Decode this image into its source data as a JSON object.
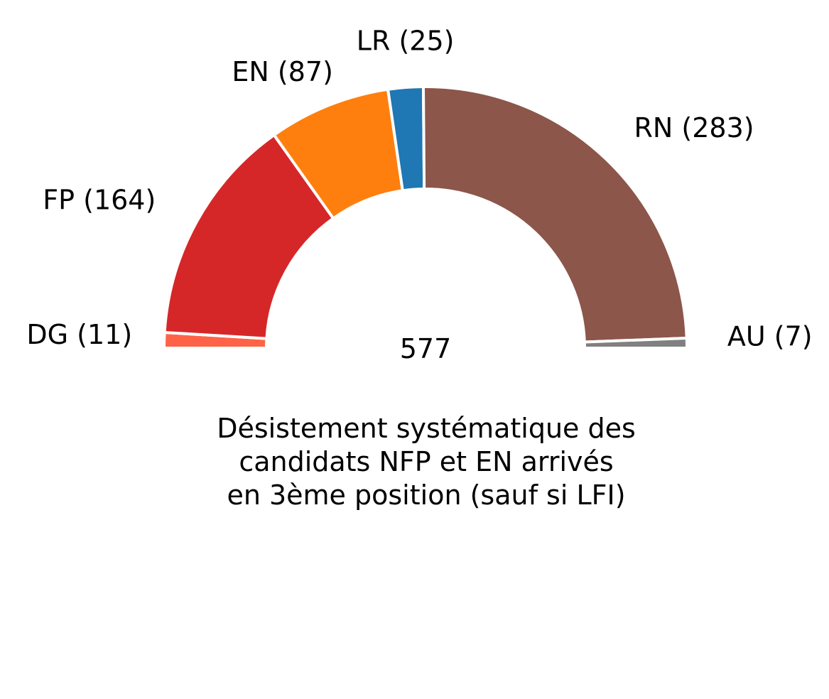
{
  "chart_data": {
    "type": "pie",
    "subtype": "half-donut",
    "total": 577,
    "total_label": "577",
    "segments": [
      {
        "name": "DG",
        "value": 11,
        "label": "DG (11)",
        "color": "#ff6347"
      },
      {
        "name": "FP",
        "value": 164,
        "label": "FP (164)",
        "color": "#d62728"
      },
      {
        "name": "EN",
        "value": 87,
        "label": "EN (87)",
        "color": "#ff7f0e"
      },
      {
        "name": "LR",
        "value": 25,
        "label": "LR (25)",
        "color": "#1f77b4"
      },
      {
        "name": "RN",
        "value": 283,
        "label": "RN (283)",
        "color": "#8c564b"
      },
      {
        "name": "AU",
        "value": 7,
        "label": "AU (7)",
        "color": "#808080"
      }
    ],
    "caption": [
      "Désistement systématique des",
      "candidats NFP et EN arrivés",
      "en 3ème position (sauf si LFI)"
    ]
  }
}
